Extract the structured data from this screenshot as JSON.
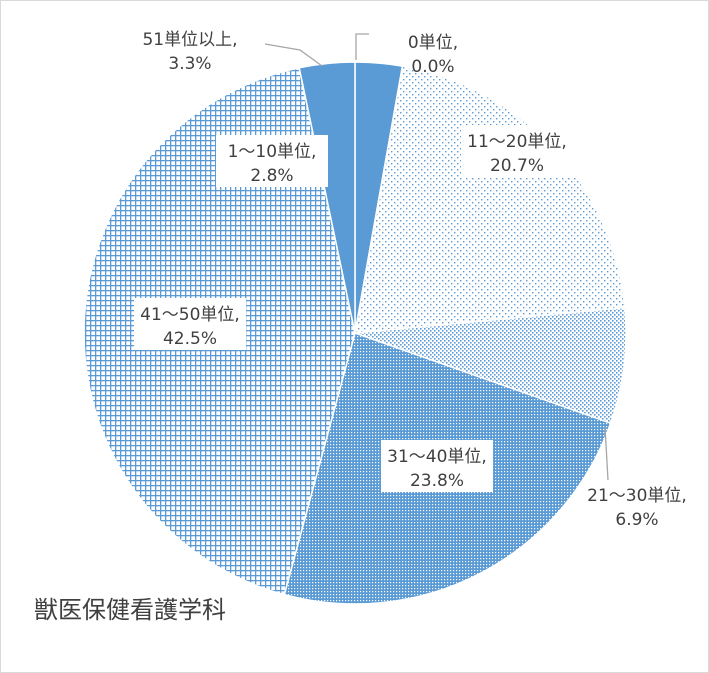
{
  "chart_data": {
    "type": "pie",
    "title": "獣医保健看護学科",
    "start_angle_deg": 0,
    "direction": "clockwise",
    "slices": [
      {
        "category": "0単位",
        "value": 0.0,
        "label_line1": "0単位,",
        "label_line2": "0.0%"
      },
      {
        "category": "1～10単位",
        "value": 2.8,
        "label_line1": "1～10単位,",
        "label_line2": "2.8%"
      },
      {
        "category": "11～20単位",
        "value": 20.7,
        "label_line1": "11～20単位,",
        "label_line2": "20.7%"
      },
      {
        "category": "21～30単位",
        "value": 6.9,
        "label_line1": "21～30単位,",
        "label_line2": "6.9%"
      },
      {
        "category": "31～40単位",
        "value": 23.8,
        "label_line1": "31～40単位,",
        "label_line2": "23.8%"
      },
      {
        "category": "41～50単位",
        "value": 42.5,
        "label_line1": "41～50単位,",
        "label_line2": "42.5%"
      },
      {
        "category": "51単位以上",
        "value": 3.3,
        "label_line1": "51単位以上,",
        "label_line2": "3.3%"
      }
    ],
    "colors": {
      "fill_base": "#5b9bd5",
      "outline": "#ffffff",
      "label_text": "#404040",
      "leader_line": "#a6a6a6"
    },
    "legend": "none"
  }
}
